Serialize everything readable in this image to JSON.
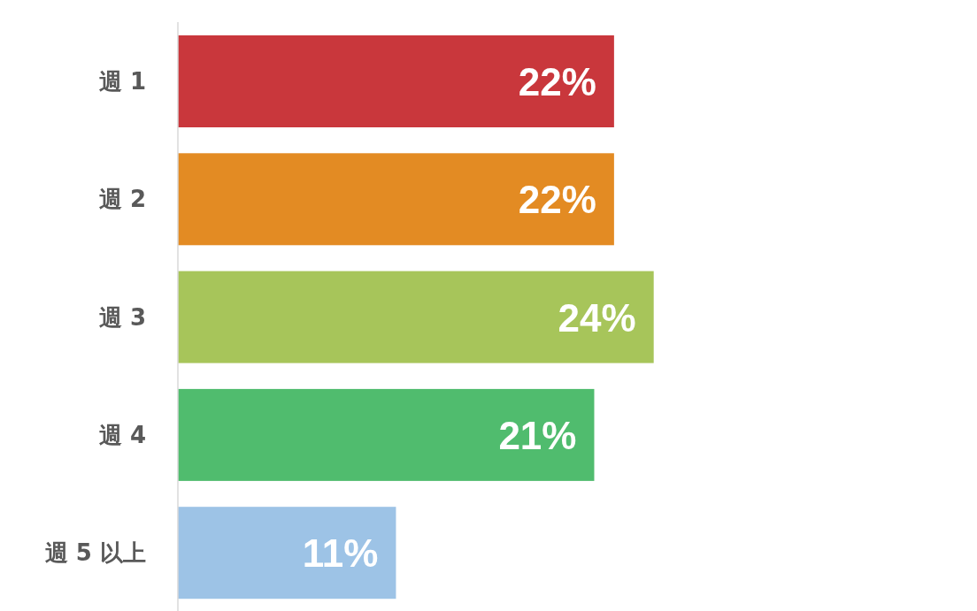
{
  "chart_data": {
    "type": "bar",
    "orientation": "horizontal",
    "categories": [
      "週 1",
      "週 2",
      "週 3",
      "週 4",
      "週 5 以上"
    ],
    "values": [
      22,
      22,
      24,
      21,
      11
    ],
    "colors": [
      "#c9373c",
      "#e38b23",
      "#a7c55a",
      "#50bc6e",
      "#9dc3e6"
    ],
    "value_labels": [
      "22%",
      "22%",
      "24%",
      "21%",
      "11%"
    ]
  }
}
